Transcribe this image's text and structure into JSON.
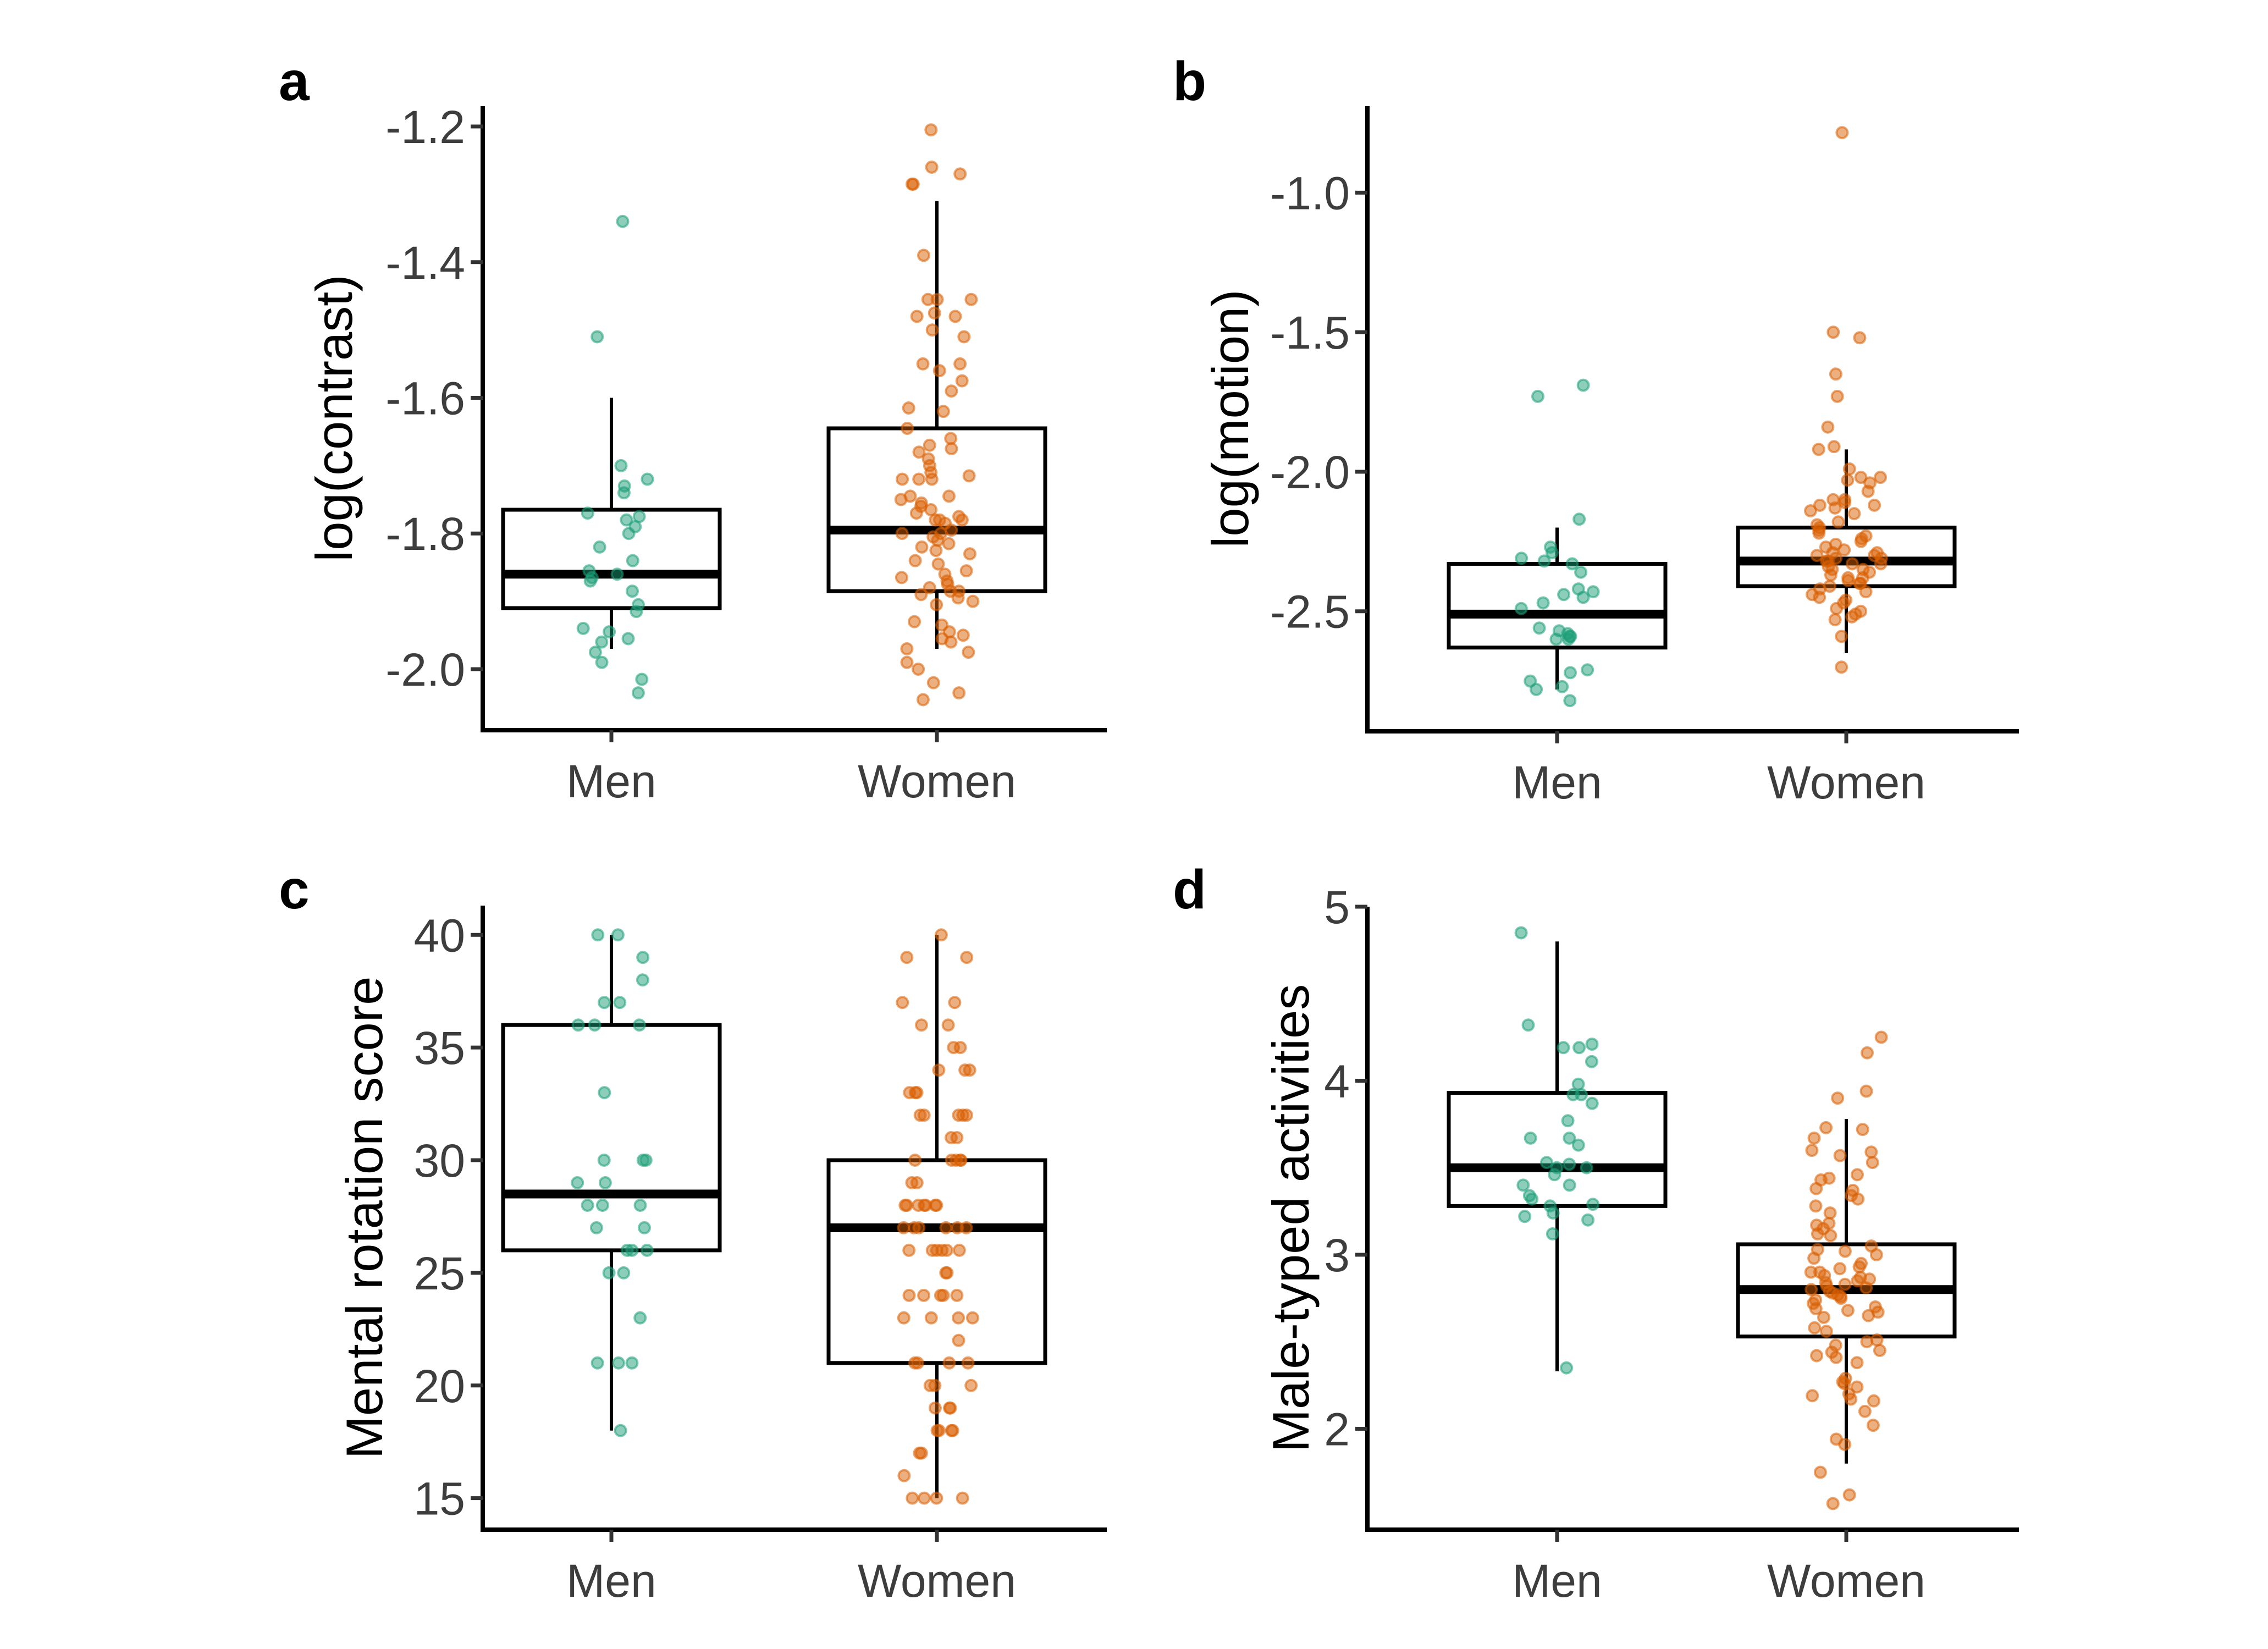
{
  "chart_data": [
    {
      "type": "box",
      "panel": "a",
      "title": "",
      "xlabel": "",
      "ylabel": "log(contrast)",
      "categories": [
        "Men",
        "Women"
      ],
      "ylim": [
        -2.09,
        -1.17
      ],
      "yticks": [
        -1.2,
        -1.4,
        -1.6,
        -1.8,
        -2.0
      ],
      "ytick_labels": [
        "-1.2",
        "-1.4",
        "-1.6",
        "-1.8",
        "-2.0"
      ],
      "boxes": [
        {
          "name": "Men",
          "whisker_low": -1.97,
          "q1": -1.91,
          "median": -1.86,
          "q3": -1.765,
          "whisker_high": -1.6
        },
        {
          "name": "Women",
          "whisker_low": -1.97,
          "q1": -1.885,
          "median": -1.795,
          "q3": -1.645,
          "whisker_high": -1.31
        }
      ],
      "points": [
        {
          "group": "Men",
          "values": [
            -1.34,
            -1.51,
            -1.7,
            -1.72,
            -1.73,
            -1.74,
            -1.77,
            -1.775,
            -1.78,
            -1.79,
            -1.8,
            -1.82,
            -1.84,
            -1.855,
            -1.86,
            -1.865,
            -1.87,
            -1.885,
            -1.905,
            -1.915,
            -1.94,
            -1.945,
            -1.955,
            -1.96,
            -1.975,
            -1.99,
            -2.015,
            -2.035
          ]
        },
        {
          "group": "Women",
          "values": [
            -1.205,
            -1.26,
            -1.27,
            -1.285,
            -1.285,
            -1.39,
            -1.455,
            -1.455,
            -1.455,
            -1.475,
            -1.48,
            -1.48,
            -1.5,
            -1.51,
            -1.55,
            -1.55,
            -1.56,
            -1.575,
            -1.59,
            -1.615,
            -1.62,
            -1.645,
            -1.66,
            -1.67,
            -1.675,
            -1.68,
            -1.69,
            -1.7,
            -1.71,
            -1.715,
            -1.72,
            -1.72,
            -1.72,
            -1.745,
            -1.745,
            -1.75,
            -1.755,
            -1.76,
            -1.765,
            -1.77,
            -1.775,
            -1.78,
            -1.78,
            -1.78,
            -1.785,
            -1.795,
            -1.8,
            -1.8,
            -1.805,
            -1.81,
            -1.815,
            -1.82,
            -1.825,
            -1.83,
            -1.84,
            -1.845,
            -1.855,
            -1.86,
            -1.865,
            -1.87,
            -1.875,
            -1.88,
            -1.885,
            -1.885,
            -1.89,
            -1.895,
            -1.9,
            -1.905,
            -1.93,
            -1.935,
            -1.945,
            -1.95,
            -1.955,
            -1.96,
            -1.97,
            -1.975,
            -1.99,
            -2.0,
            -2.02,
            -2.035,
            -2.045
          ]
        }
      ]
    },
    {
      "type": "box",
      "panel": "b",
      "title": "",
      "xlabel": "",
      "ylabel": "log(motion)",
      "categories": [
        "Men",
        "Women"
      ],
      "ylim": [
        -2.93,
        -0.69
      ],
      "yticks": [
        -1.0,
        -1.5,
        -2.0,
        -2.5
      ],
      "ytick_labels": [
        "-1.0",
        "-1.5",
        "-2.0",
        "-2.5"
      ],
      "boxes": [
        {
          "name": "Men",
          "whisker_low": -2.78,
          "q1": -2.63,
          "median": -2.51,
          "q3": -2.33,
          "whisker_high": -2.2
        },
        {
          "name": "Women",
          "whisker_low": -2.65,
          "q1": -2.41,
          "median": -2.32,
          "q3": -2.2,
          "whisker_high": -1.92
        }
      ],
      "points": [
        {
          "group": "Men",
          "values": [
            -1.69,
            -1.73,
            -2.17,
            -2.27,
            -2.29,
            -2.31,
            -2.32,
            -2.33,
            -2.36,
            -2.42,
            -2.43,
            -2.44,
            -2.45,
            -2.47,
            -2.49,
            -2.56,
            -2.57,
            -2.58,
            -2.59,
            -2.59,
            -2.6,
            -2.6,
            -2.71,
            -2.72,
            -2.75,
            -2.77,
            -2.78,
            -2.82
          ]
        },
        {
          "group": "Women",
          "values": [
            -0.785,
            -1.5,
            -1.52,
            -1.65,
            -1.73,
            -1.84,
            -1.91,
            -1.92,
            -1.99,
            -2.02,
            -2.02,
            -2.03,
            -2.04,
            -2.07,
            -2.1,
            -2.1,
            -2.11,
            -2.12,
            -2.12,
            -2.13,
            -2.14,
            -2.15,
            -2.18,
            -2.19,
            -2.2,
            -2.21,
            -2.22,
            -2.23,
            -2.24,
            -2.25,
            -2.26,
            -2.27,
            -2.28,
            -2.29,
            -2.29,
            -2.3,
            -2.3,
            -2.31,
            -2.31,
            -2.32,
            -2.32,
            -2.33,
            -2.33,
            -2.34,
            -2.35,
            -2.35,
            -2.36,
            -2.37,
            -2.38,
            -2.38,
            -2.39,
            -2.4,
            -2.4,
            -2.41,
            -2.42,
            -2.43,
            -2.44,
            -2.45,
            -2.46,
            -2.47,
            -2.49,
            -2.5,
            -2.51,
            -2.52,
            -2.53,
            -2.59,
            -2.7
          ]
        }
      ]
    },
    {
      "type": "box",
      "panel": "c",
      "title": "",
      "xlabel": "",
      "ylabel": "Mental rotation score",
      "categories": [
        "Men",
        "Women"
      ],
      "ylim": [
        13.6,
        41.3
      ],
      "yticks": [
        40,
        35,
        30,
        25,
        20,
        15
      ],
      "ytick_labels": [
        "40",
        "35",
        "30",
        "25",
        "20",
        "15"
      ],
      "boxes": [
        {
          "name": "Men",
          "whisker_low": 18,
          "q1": 26,
          "median": 28.5,
          "q3": 36,
          "whisker_high": 40
        },
        {
          "name": "Women",
          "whisker_low": 15,
          "q1": 21,
          "median": 27,
          "q3": 30,
          "whisker_high": 40
        }
      ],
      "points": [
        {
          "group": "Men",
          "values": [
            40,
            40,
            39,
            38,
            37,
            37,
            36,
            36,
            36,
            33,
            30,
            30,
            30,
            29,
            29,
            28,
            28,
            28,
            27,
            27,
            26,
            26,
            26,
            25,
            25,
            23,
            21,
            21,
            21,
            18
          ]
        },
        {
          "group": "Women",
          "values": [
            40,
            39,
            39,
            37,
            37,
            36,
            36,
            35,
            35,
            34,
            34,
            34,
            33,
            33,
            33,
            32,
            32,
            32,
            32,
            32,
            31,
            31,
            30,
            30,
            30,
            30,
            30,
            29,
            29,
            28,
            28,
            28,
            28,
            28,
            28,
            28,
            27,
            27,
            27,
            27,
            27,
            27,
            26,
            26,
            26,
            26,
            26,
            26,
            25,
            25,
            24,
            24,
            24,
            24,
            24,
            23,
            23,
            23,
            23,
            22,
            21,
            21,
            21,
            21,
            20,
            20,
            20,
            19,
            19,
            19,
            18,
            18,
            18,
            18,
            17,
            17,
            16,
            15,
            15,
            15,
            15
          ]
        }
      ]
    },
    {
      "type": "box",
      "panel": "d",
      "title": "",
      "xlabel": "",
      "ylabel": "Male-typed activities",
      "categories": [
        "Men",
        "Women"
      ],
      "ylim": [
        1.42,
        5.0
      ],
      "yticks": [
        5,
        4,
        3,
        2
      ],
      "ytick_labels": [
        "5",
        "4",
        "3",
        "2"
      ],
      "boxes": [
        {
          "name": "Men",
          "whisker_low": 2.33,
          "q1": 3.28,
          "median": 3.5,
          "q3": 3.93,
          "whisker_high": 4.8
        },
        {
          "name": "Women",
          "whisker_low": 1.8,
          "q1": 2.53,
          "median": 2.8,
          "q3": 3.06,
          "whisker_high": 3.78
        }
      ],
      "points": [
        {
          "group": "Men",
          "values": [
            4.85,
            4.32,
            4.21,
            4.19,
            4.19,
            4.11,
            3.98,
            3.92,
            3.92,
            3.87,
            3.77,
            3.67,
            3.67,
            3.63,
            3.53,
            3.52,
            3.5,
            3.5,
            3.46,
            3.4,
            3.4,
            3.34,
            3.32,
            3.29,
            3.28,
            3.24,
            3.22,
            3.2,
            3.12,
            2.35
          ]
        },
        {
          "group": "Women",
          "values": [
            4.25,
            4.16,
            3.94,
            3.9,
            3.73,
            3.72,
            3.67,
            3.6,
            3.59,
            3.57,
            3.53,
            3.46,
            3.44,
            3.43,
            3.38,
            3.37,
            3.34,
            3.32,
            3.28,
            3.24,
            3.18,
            3.17,
            3.15,
            3.12,
            3.11,
            3.05,
            3.03,
            3.02,
            3.0,
            2.98,
            2.95,
            2.93,
            2.92,
            2.9,
            2.9,
            2.88,
            2.87,
            2.86,
            2.85,
            2.84,
            2.83,
            2.82,
            2.81,
            2.8,
            2.79,
            2.78,
            2.77,
            2.76,
            2.75,
            2.74,
            2.72,
            2.7,
            2.69,
            2.68,
            2.67,
            2.65,
            2.64,
            2.58,
            2.56,
            2.51,
            2.5,
            2.48,
            2.45,
            2.44,
            2.42,
            2.41,
            2.38,
            2.29,
            2.27,
            2.26,
            2.24,
            2.2,
            2.19,
            2.17,
            2.16,
            2.1,
            2.02,
            1.94,
            1.91,
            1.75,
            1.62,
            1.57
          ]
        }
      ]
    }
  ],
  "colors": {
    "Men": "#1B9E77",
    "Women": "#D95F02",
    "box": "#000000",
    "tick_text": "#3d3d3d"
  }
}
